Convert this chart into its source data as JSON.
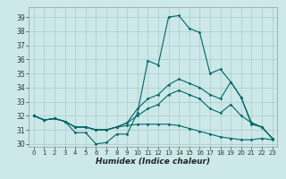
{
  "xlabel": "Humidex (Indice chaleur)",
  "bg_color": "#cce8e8",
  "grid_color": "#aacccc",
  "line_color": "#006666",
  "xlim": [
    -0.5,
    23.5
  ],
  "ylim": [
    29.8,
    39.7
  ],
  "yticks": [
    30,
    31,
    32,
    33,
    34,
    35,
    36,
    37,
    38,
    39
  ],
  "xticks": [
    0,
    1,
    2,
    3,
    4,
    5,
    6,
    7,
    8,
    9,
    10,
    11,
    12,
    13,
    14,
    15,
    16,
    17,
    18,
    19,
    20,
    21,
    22,
    23
  ],
  "series": [
    [
      32.0,
      31.7,
      31.8,
      31.6,
      30.8,
      30.8,
      30.0,
      30.1,
      30.7,
      30.7,
      32.2,
      35.9,
      35.6,
      39.0,
      39.1,
      38.2,
      37.9,
      35.0,
      35.3,
      34.4,
      33.3,
      31.4,
      31.2,
      30.4
    ],
    [
      32.0,
      31.7,
      31.8,
      31.6,
      31.2,
      31.2,
      31.0,
      31.0,
      31.2,
      31.5,
      32.5,
      33.2,
      33.5,
      34.2,
      34.6,
      34.3,
      34.0,
      33.5,
      33.2,
      34.4,
      33.3,
      31.5,
      31.2,
      30.4
    ],
    [
      32.0,
      31.7,
      31.8,
      31.6,
      31.2,
      31.2,
      31.0,
      31.0,
      31.2,
      31.5,
      32.0,
      32.5,
      32.8,
      33.5,
      33.8,
      33.5,
      33.2,
      32.5,
      32.2,
      32.8,
      32.0,
      31.5,
      31.2,
      30.4
    ],
    [
      32.0,
      31.7,
      31.8,
      31.6,
      31.2,
      31.2,
      31.0,
      31.0,
      31.2,
      31.3,
      31.4,
      31.4,
      31.4,
      31.4,
      31.3,
      31.1,
      30.9,
      30.7,
      30.5,
      30.4,
      30.3,
      30.3,
      30.4,
      30.3
    ]
  ]
}
